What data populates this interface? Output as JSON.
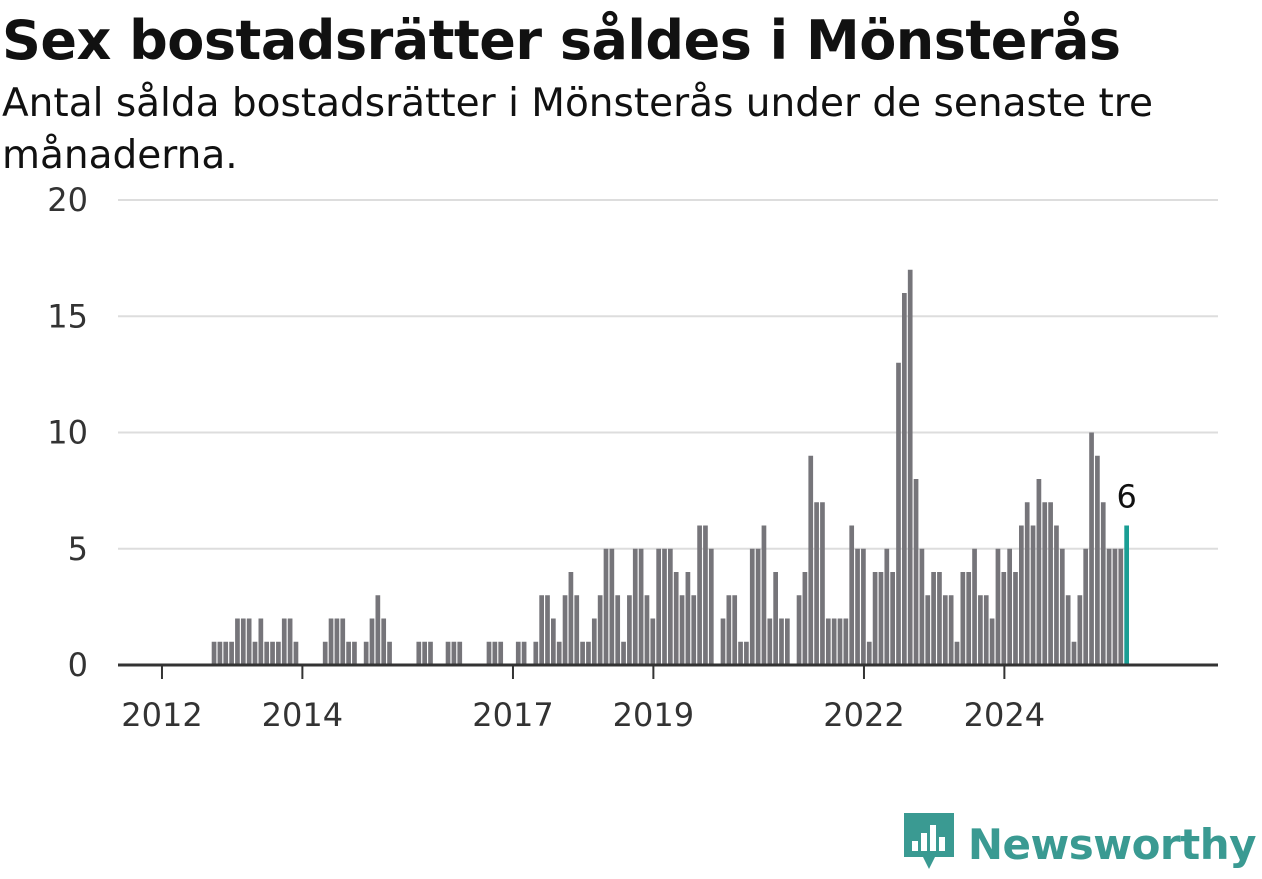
{
  "page": {
    "title": "Sex bostadsrätter såldes i Mönsterås",
    "subtitle": "Antal sålda bostadsrätter i Mönsterås under de senaste tre månaderna."
  },
  "brand": {
    "name": "Newsworthy",
    "icon": "newsworthy-logo-icon",
    "color": "#3a9a92"
  },
  "chart_data": {
    "type": "bar",
    "title": "Sex bostadsrätter såldes i Mönsterås",
    "subtitle": "Antal sålda bostadsrätter i Mönsterås under de senaste tre månaderna.",
    "xlabel": "",
    "ylabel": "",
    "ylim": [
      0,
      20
    ],
    "y_ticks": [
      0,
      5,
      10,
      15,
      20
    ],
    "grid": true,
    "x_tick_labels": [
      {
        "label": "2012",
        "index": 1.5
      },
      {
        "label": "2014",
        "index": 25.5
      },
      {
        "label": "2017",
        "index": 61.5
      },
      {
        "label": "2019",
        "index": 85.5
      },
      {
        "label": "2022",
        "index": 121.5
      },
      {
        "label": "2024",
        "index": 145.5
      }
    ],
    "values": [
      0,
      0,
      0,
      0,
      0,
      0,
      0,
      0,
      0,
      0,
      1,
      1,
      1,
      1,
      2,
      2,
      2,
      1,
      2,
      1,
      1,
      1,
      2,
      2,
      1,
      0,
      0,
      0,
      0,
      1,
      2,
      2,
      2,
      1,
      1,
      0,
      1,
      2,
      3,
      2,
      1,
      0,
      0,
      0,
      0,
      1,
      1,
      1,
      0,
      0,
      1,
      1,
      1,
      0,
      0,
      0,
      0,
      1,
      1,
      1,
      0,
      0,
      1,
      1,
      0,
      1,
      3,
      3,
      2,
      1,
      3,
      4,
      3,
      1,
      1,
      2,
      3,
      5,
      5,
      3,
      1,
      3,
      5,
      5,
      3,
      2,
      5,
      5,
      5,
      4,
      3,
      4,
      3,
      6,
      6,
      5,
      0,
      2,
      3,
      3,
      1,
      1,
      5,
      5,
      6,
      2,
      4,
      2,
      2,
      0,
      3,
      4,
      9,
      7,
      7,
      2,
      2,
      2,
      2,
      6,
      5,
      5,
      1,
      4,
      4,
      5,
      4,
      13,
      16,
      17,
      8,
      5,
      3,
      4,
      4,
      3,
      3,
      1,
      4,
      4,
      5,
      3,
      3,
      2,
      5,
      4,
      5,
      4,
      6,
      7,
      6,
      8,
      7,
      7,
      6,
      5,
      3,
      1,
      3,
      5,
      10,
      9,
      7,
      5,
      5,
      5,
      6
    ],
    "highlight": {
      "index": 166,
      "value": 6,
      "label": "6",
      "color": "#1a9e94"
    },
    "bar_color": "#76757a",
    "axis_color": "#333333",
    "grid_color": "#dddddd"
  }
}
